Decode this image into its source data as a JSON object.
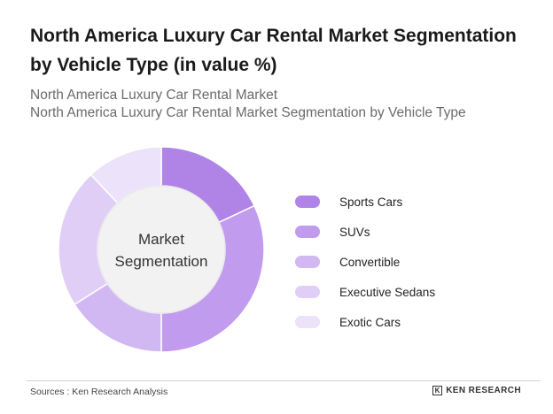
{
  "header": {
    "title": "North America Luxury Car Rental Market Segmentation by Vehicle Type (in value %)",
    "subtitle_line1": "North America Luxury Car Rental Market",
    "subtitle_line2": "North America Luxury Car Rental Market Segmentation by Vehicle Type"
  },
  "chart_data": {
    "type": "pie",
    "variant": "donut",
    "center_label": [
      "Market",
      "Segmentation"
    ],
    "categories": [
      "Sports Cars",
      "SUVs",
      "Convertible",
      "Executive Sedans",
      "Exotic Cars"
    ],
    "values": [
      18,
      32,
      16,
      22,
      12
    ],
    "colors": [
      "#b083e6",
      "#c19bee",
      "#d2b8f3",
      "#e0cef7",
      "#ece2fa"
    ],
    "legend_position": "right"
  },
  "footer": {
    "source": "Sources : Ken Research Analysis",
    "brand_mark": "K",
    "brand": "KEN RESEARCH"
  }
}
